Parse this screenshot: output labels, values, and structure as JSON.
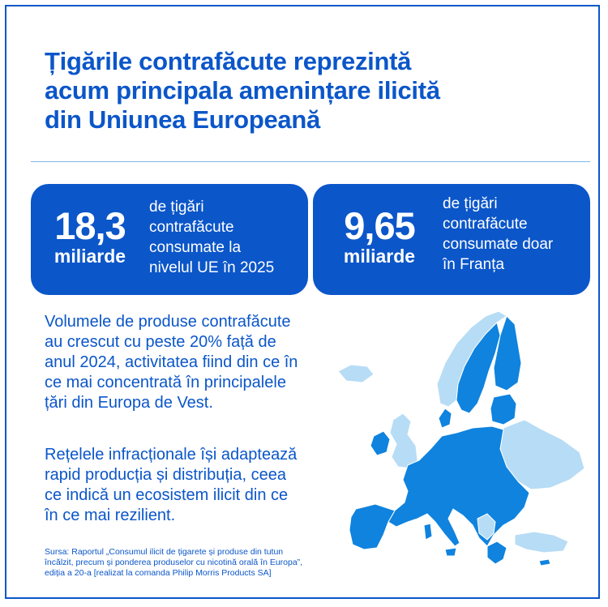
{
  "title": {
    "lines": [
      "Țigările contrafăcute reprezintă",
      "acum principala amenințare ilicită",
      "din Uniunea Europeană"
    ]
  },
  "stats": [
    {
      "number": "18,3",
      "unit": "miliarde",
      "description_lines": [
        "de țigări",
        "contrafăcute",
        "consumate la",
        "nivelul UE în 2025"
      ]
    },
    {
      "number": "9,65",
      "unit": "miliarde",
      "description_lines": [
        "de țigări",
        "contrafăcute",
        "consumate doar",
        "în Franța"
      ]
    }
  ],
  "paragraphs": [
    {
      "lines": [
        "Volumele de produse contrafăcute",
        "au crescut cu peste 20% față de",
        "anul 2024, activitatea fiind din ce în",
        "ce mai concentrată în principalele",
        "țări din Europa de Vest."
      ]
    },
    {
      "lines": [
        "Rețelele infracționale își adaptează",
        "rapid producția și distribuția, ceea",
        "ce indică un ecosistem ilicit din ce",
        "în ce mai rezilient."
      ]
    }
  ],
  "source": {
    "lines": [
      "Sursa: Raportul „Consumul ilicit de țigarete și produse din tutun",
      "încălzit, precum și ponderea produselor cu nicotină orală în Europa”,",
      "ediția a 20-a [realizat la comanda Philip Morris Products SA]"
    ]
  },
  "colors": {
    "brand_blue": "#0b56c9",
    "eu_blue": "#0f83de",
    "non_eu_light_blue": "#b7dcf5",
    "rule": "#7fb6e6"
  },
  "map": {
    "icon": "europe-map-icon"
  }
}
